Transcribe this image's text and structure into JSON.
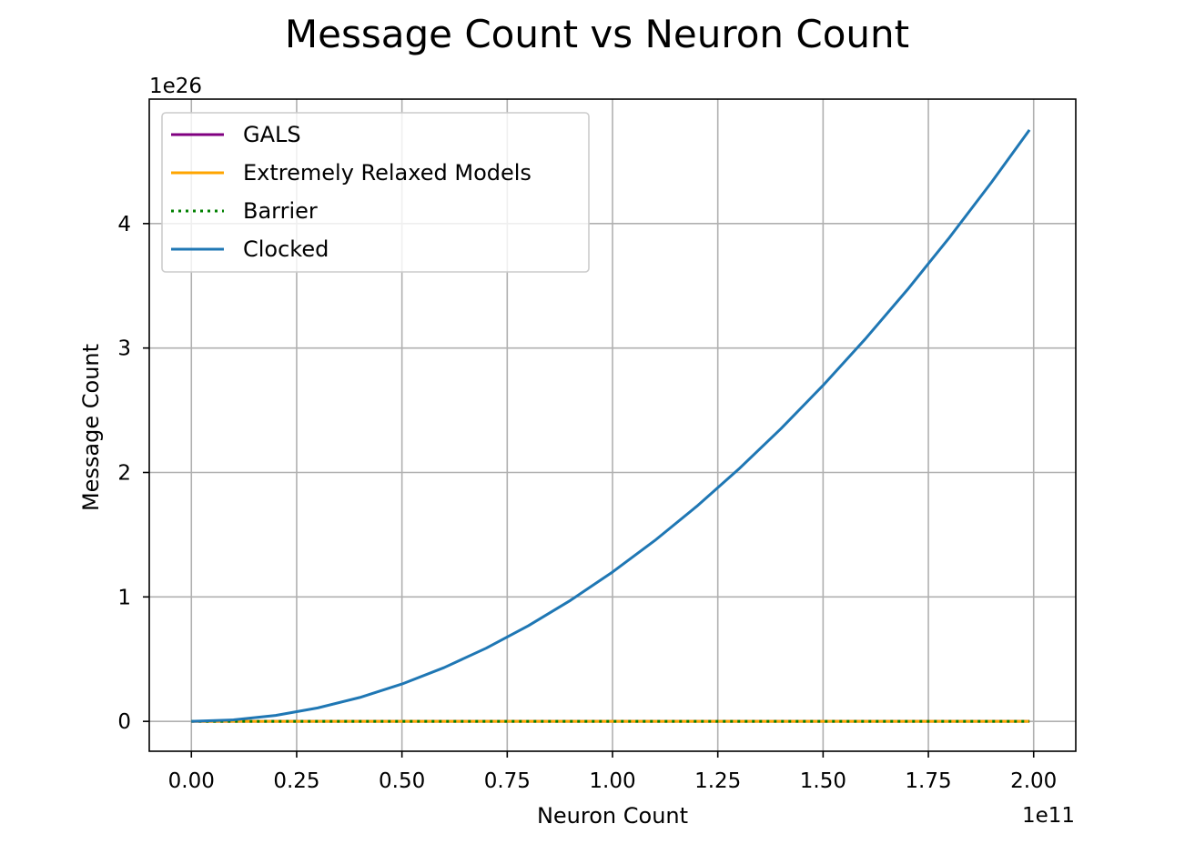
{
  "chart_data": {
    "type": "line",
    "title": "Message Count vs Neuron Count",
    "xlabel": "Neuron Count",
    "ylabel": "Message Count",
    "x_offset_text": "1e11",
    "y_offset_text": "1e26",
    "x_scale": 100000000000.0,
    "y_scale": 1e+26,
    "xlim": [
      -0.1,
      2.1
    ],
    "ylim": [
      -0.24,
      5.0
    ],
    "x_ticks": [
      0.0,
      0.25,
      0.5,
      0.75,
      1.0,
      1.25,
      1.5,
      1.75,
      2.0
    ],
    "x_tick_labels": [
      "0.00",
      "0.25",
      "0.50",
      "0.75",
      "1.00",
      "1.25",
      "1.50",
      "1.75",
      "2.00"
    ],
    "y_ticks": [
      0,
      1,
      2,
      3,
      4
    ],
    "y_tick_labels": [
      "0",
      "1",
      "2",
      "3",
      "4"
    ],
    "grid": true,
    "legend_position": "upper-left",
    "x": [
      0.0,
      0.1,
      0.2,
      0.3,
      0.4,
      0.5,
      0.6,
      0.7,
      0.8,
      0.9,
      1.0,
      1.1,
      1.2,
      1.3,
      1.4,
      1.5,
      1.6,
      1.7,
      1.8,
      1.9,
      1.99
    ],
    "series": [
      {
        "name": "GALS",
        "color": "#800080",
        "style": "solid",
        "values": [
          0,
          0,
          0,
          0,
          0,
          0,
          0,
          0,
          0,
          0,
          0,
          0,
          0,
          0,
          0,
          0,
          0,
          0,
          0,
          0,
          0
        ]
      },
      {
        "name": "Extremely Relaxed Models",
        "color": "#FFA500",
        "style": "solid",
        "values": [
          0,
          0,
          0,
          0,
          0,
          0,
          0,
          0,
          0,
          0,
          0,
          0,
          0,
          0,
          0,
          0,
          0,
          0,
          0,
          0,
          0
        ]
      },
      {
        "name": "Barrier",
        "color": "#008000",
        "style": "dotted",
        "values": [
          0,
          0,
          0,
          0,
          0,
          0,
          0,
          0,
          0,
          0,
          0,
          0,
          0,
          0,
          0,
          0,
          0,
          0,
          0,
          0,
          0
        ]
      },
      {
        "name": "Clocked",
        "color": "#1f77b4",
        "style": "solid",
        "values": [
          0.0,
          0.012,
          0.048,
          0.108,
          0.192,
          0.3,
          0.432,
          0.588,
          0.768,
          0.972,
          1.2,
          1.452,
          1.728,
          2.028,
          2.352,
          2.7,
          3.072,
          3.468,
          3.888,
          4.332,
          4.752
        ]
      }
    ]
  }
}
